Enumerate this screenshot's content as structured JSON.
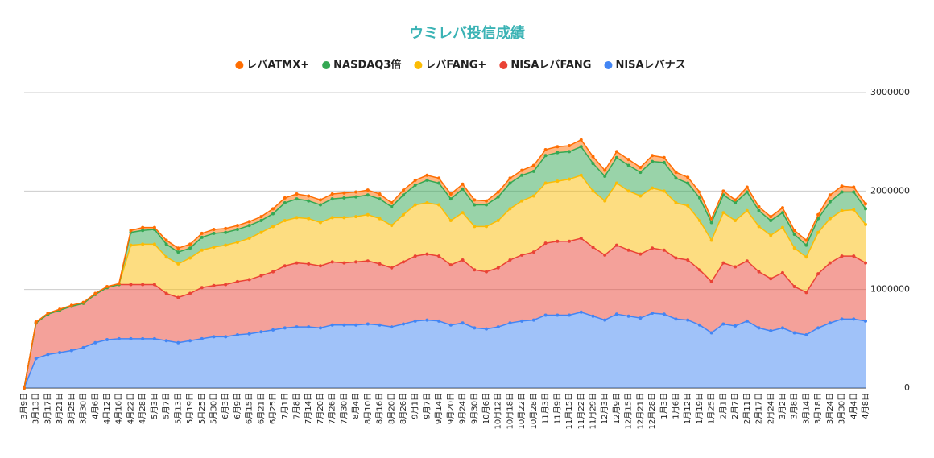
{
  "chart_data": {
    "type": "stacked-area",
    "title": "ウミレバ投信成績",
    "categories": [
      "3月9日",
      "3月13日",
      "3月17日",
      "3月21日",
      "3月25日",
      "3月30日",
      "4月6日",
      "4月12日",
      "4月16日",
      "4月22日",
      "4月28日",
      "5月3日",
      "5月7日",
      "5月13日",
      "5月19日",
      "5月25日",
      "5月30日",
      "6月3日",
      "6月9日",
      "6月15日",
      "6月21日",
      "6月25日",
      "7月1日",
      "7月8日",
      "7月14日",
      "7月20日",
      "7月26日",
      "7月30日",
      "8月4日",
      "8月10日",
      "8月16日",
      "8月20日",
      "8月26日",
      "9月1日",
      "9月7日",
      "9月14日",
      "9月20日",
      "9月24日",
      "9月30日",
      "10月6日",
      "10月12日",
      "10月18日",
      "10月22日",
      "10月28日",
      "11月3日",
      "11月9日",
      "11月15日",
      "11月22日",
      "11月29日",
      "12月3日",
      "12月9日",
      "12月15日",
      "12月21日",
      "12月28日",
      "1月3日",
      "1月6日",
      "1月12日",
      "1月19日",
      "1月25日",
      "2月1日",
      "2月7日",
      "2月11日",
      "2月17日",
      "2月24日",
      "3月2日",
      "3月8日",
      "3月14日",
      "3月18日",
      "3月24日",
      "3月30日",
      "4月4日",
      "4月8日"
    ],
    "series": [
      {
        "name": "レバATMX+",
        "color": "#ff6d01",
        "values": [
          0,
          10000,
          10000,
          10000,
          10000,
          10000,
          10000,
          10000,
          10000,
          20000,
          30000,
          20000,
          40000,
          40000,
          40000,
          40000,
          40000,
          40000,
          40000,
          40000,
          40000,
          50000,
          50000,
          50000,
          50000,
          50000,
          50000,
          50000,
          50000,
          50000,
          50000,
          40000,
          50000,
          50000,
          50000,
          50000,
          50000,
          50000,
          50000,
          40000,
          50000,
          50000,
          50000,
          60000,
          60000,
          60000,
          60000,
          70000,
          70000,
          60000,
          60000,
          60000,
          50000,
          60000,
          50000,
          60000,
          60000,
          60000,
          40000,
          40000,
          30000,
          50000,
          40000,
          40000,
          50000,
          40000,
          50000,
          40000,
          70000,
          60000,
          50000,
          50000
        ]
      },
      {
        "name": "NASDAQ3倍",
        "color": "#34a853",
        "values": [
          0,
          0,
          0,
          0,
          0,
          0,
          0,
          0,
          0,
          130000,
          140000,
          150000,
          130000,
          120000,
          100000,
          130000,
          140000,
          130000,
          130000,
          130000,
          120000,
          130000,
          180000,
          190000,
          180000,
          180000,
          190000,
          200000,
          200000,
          200000,
          200000,
          190000,
          200000,
          200000,
          230000,
          220000,
          220000,
          240000,
          220000,
          220000,
          240000,
          260000,
          260000,
          250000,
          280000,
          290000,
          280000,
          290000,
          280000,
          250000,
          260000,
          260000,
          240000,
          270000,
          290000,
          250000,
          230000,
          230000,
          180000,
          180000,
          180000,
          190000,
          160000,
          150000,
          150000,
          140000,
          120000,
          140000,
          170000,
          190000,
          180000,
          160000
        ]
      },
      {
        "name": "レバFANG+",
        "color": "#fbbc04",
        "values": [
          0,
          0,
          0,
          0,
          0,
          0,
          0,
          0,
          0,
          400000,
          410000,
          410000,
          370000,
          340000,
          360000,
          380000,
          390000,
          400000,
          400000,
          420000,
          440000,
          460000,
          460000,
          460000,
          460000,
          440000,
          450000,
          460000,
          460000,
          470000,
          460000,
          430000,
          480000,
          520000,
          520000,
          520000,
          450000,
          480000,
          440000,
          460000,
          480000,
          520000,
          550000,
          570000,
          610000,
          610000,
          630000,
          640000,
          570000,
          550000,
          630000,
          600000,
          590000,
          610000,
          600000,
          560000,
          550000,
          500000,
          420000,
          510000,
          470000,
          510000,
          460000,
          440000,
          460000,
          390000,
          360000,
          420000,
          450000,
          460000,
          470000,
          390000
        ]
      },
      {
        "name": "NISAレバFANG",
        "color": "#ea4335",
        "values": [
          0,
          360000,
          410000,
          430000,
          450000,
          450000,
          490000,
          530000,
          550000,
          550000,
          550000,
          550000,
          480000,
          460000,
          480000,
          520000,
          520000,
          530000,
          540000,
          550000,
          570000,
          590000,
          630000,
          650000,
          640000,
          630000,
          640000,
          630000,
          640000,
          640000,
          620000,
          600000,
          630000,
          660000,
          670000,
          660000,
          610000,
          640000,
          590000,
          580000,
          600000,
          640000,
          670000,
          690000,
          730000,
          750000,
          750000,
          750000,
          700000,
          660000,
          700000,
          670000,
          650000,
          660000,
          650000,
          620000,
          610000,
          560000,
          520000,
          620000,
          600000,
          610000,
          570000,
          530000,
          560000,
          470000,
          430000,
          550000,
          610000,
          640000,
          640000,
          590000
        ]
      },
      {
        "name": "NISAレバナス",
        "color": "#4285f4",
        "values": [
          0,
          300000,
          340000,
          360000,
          380000,
          410000,
          460000,
          490000,
          500000,
          500000,
          500000,
          500000,
          480000,
          460000,
          480000,
          500000,
          520000,
          520000,
          540000,
          550000,
          570000,
          590000,
          610000,
          620000,
          620000,
          610000,
          640000,
          640000,
          640000,
          650000,
          640000,
          620000,
          650000,
          680000,
          690000,
          680000,
          640000,
          660000,
          610000,
          600000,
          620000,
          660000,
          680000,
          690000,
          740000,
          740000,
          740000,
          770000,
          730000,
          690000,
          750000,
          730000,
          710000,
          760000,
          750000,
          700000,
          690000,
          640000,
          560000,
          650000,
          630000,
          680000,
          610000,
          580000,
          610000,
          560000,
          540000,
          610000,
          660000,
          700000,
          700000,
          680000
        ]
      }
    ],
    "ylim": [
      0,
      3000000
    ],
    "yticks": [
      0,
      1000000,
      2000000,
      3000000
    ],
    "grid": true,
    "legend": "top"
  }
}
